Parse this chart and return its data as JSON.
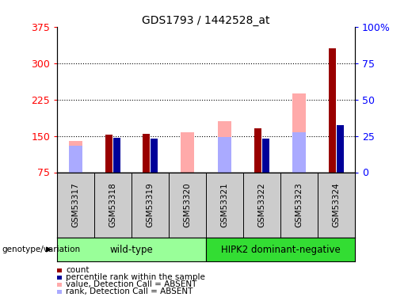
{
  "title": "GDS1793 / 1442528_at",
  "samples": [
    "GSM53317",
    "GSM53318",
    "GSM53319",
    "GSM53320",
    "GSM53321",
    "GSM53322",
    "GSM53323",
    "GSM53324"
  ],
  "count_values": [
    null,
    152,
    154,
    null,
    null,
    165,
    null,
    330
  ],
  "percentile_values": [
    null,
    146,
    145,
    null,
    null,
    145,
    null,
    172
  ],
  "value_absent": [
    140,
    null,
    null,
    158,
    180,
    null,
    237,
    null
  ],
  "rank_absent": [
    130,
    null,
    null,
    null,
    148,
    null,
    158,
    null
  ],
  "ylim": [
    75,
    375
  ],
  "yticks": [
    75,
    150,
    225,
    300,
    375
  ],
  "ytick_labels_right": [
    "0",
    "25",
    "50",
    "75",
    "100%"
  ],
  "yticks_right_vals": [
    0,
    25,
    50,
    75,
    100
  ],
  "color_count": "#990000",
  "color_percentile": "#000099",
  "color_value_absent": "#ffaaaa",
  "color_rank_absent": "#aaaaff",
  "legend_items": [
    [
      "#990000",
      "count"
    ],
    [
      "#000099",
      "percentile rank within the sample"
    ],
    [
      "#ffaaaa",
      "value, Detection Call = ABSENT"
    ],
    [
      "#aaaaff",
      "rank, Detection Call = ABSENT"
    ]
  ],
  "group1_label": "wild-type",
  "group1_color": "#99ff99",
  "group2_label": "HIPK2 dominant-negative",
  "group2_color": "#33dd33",
  "geno_label": "genotype/variation"
}
